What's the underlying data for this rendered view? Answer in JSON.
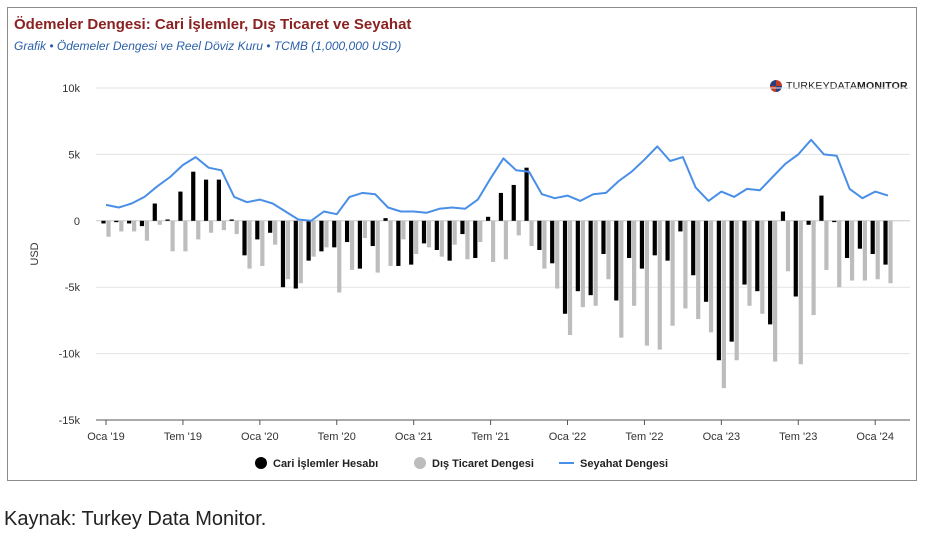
{
  "header": {
    "title": "Ödemeler Dengesi: Cari İşlemler, Dış Ticaret ve Seyahat",
    "subtitle": "Grafik • Ödemeler Dengesi ve Reel Döviz Kuru • TCMB (1,000,000 USD)"
  },
  "logo": {
    "light": "TURKEY",
    "mid": "DATA",
    "bold": "MONITOR"
  },
  "footer": {
    "source": "Kaynak: Turkey Data Monitor."
  },
  "colors": {
    "current": "#000000",
    "trade": "#bdbdbd",
    "travel": "#4a8fe7"
  },
  "chart_data": {
    "type": "bar",
    "ylabel": "USD",
    "ylim": [
      -15000,
      10000
    ],
    "yticks": [
      10000,
      5000,
      0,
      -5000,
      -10000,
      -15000
    ],
    "ytick_labels": [
      "10k",
      "5k",
      "0",
      "-5k",
      "-10k",
      "-15k"
    ],
    "xtick_labels": [
      {
        "label": "Oca '19",
        "index": 0
      },
      {
        "label": "Tem '19",
        "index": 6
      },
      {
        "label": "Oca '20",
        "index": 12
      },
      {
        "label": "Tem '20",
        "index": 18
      },
      {
        "label": "Oca '21",
        "index": 24
      },
      {
        "label": "Tem '21",
        "index": 30
      },
      {
        "label": "Oca '22",
        "index": 36
      },
      {
        "label": "Tem '22",
        "index": 42
      },
      {
        "label": "Oca '23",
        "index": 48
      },
      {
        "label": "Tem '23",
        "index": 54
      },
      {
        "label": "Oca '24",
        "index": 60
      }
    ],
    "grid": true,
    "legend_position": "bottom",
    "categories": [
      "2019-01",
      "2019-02",
      "2019-03",
      "2019-04",
      "2019-05",
      "2019-06",
      "2019-07",
      "2019-08",
      "2019-09",
      "2019-10",
      "2019-11",
      "2019-12",
      "2020-01",
      "2020-02",
      "2020-03",
      "2020-04",
      "2020-05",
      "2020-06",
      "2020-07",
      "2020-08",
      "2020-09",
      "2020-10",
      "2020-11",
      "2020-12",
      "2021-01",
      "2021-02",
      "2021-03",
      "2021-04",
      "2021-05",
      "2021-06",
      "2021-07",
      "2021-08",
      "2021-09",
      "2021-10",
      "2021-11",
      "2021-12",
      "2022-01",
      "2022-02",
      "2022-03",
      "2022-04",
      "2022-05",
      "2022-06",
      "2022-07",
      "2022-08",
      "2022-09",
      "2022-10",
      "2022-11",
      "2022-12",
      "2023-01",
      "2023-02",
      "2023-03",
      "2023-04",
      "2023-05",
      "2023-06",
      "2023-07",
      "2023-08",
      "2023-09",
      "2023-10",
      "2023-11",
      "2023-12",
      "2024-01",
      "2024-02"
    ],
    "series": [
      {
        "name": "Cari İşlemler Hesabı",
        "type": "bar",
        "color": "#000000",
        "values": [
          -200,
          -100,
          -200,
          -400,
          1300,
          100,
          2200,
          3700,
          3100,
          3100,
          100,
          -2600,
          -1400,
          -900,
          -5000,
          -5100,
          -3000,
          -2300,
          -2000,
          -1600,
          -3600,
          -1900,
          200,
          -3400,
          -3300,
          -1700,
          -2200,
          -3000,
          -1000,
          -2800,
          300,
          2100,
          2700,
          4000,
          -2200,
          -3200,
          -7000,
          -5300,
          -5600,
          -2500,
          -6000,
          -2800,
          -3600,
          -2600,
          -3000,
          -800,
          -4100,
          -6100,
          -10500,
          -9100,
          -4800,
          -5300,
          -7800,
          700,
          -5700,
          -300,
          1900,
          -100,
          -2800,
          -2100,
          -2500,
          -3300
        ]
      },
      {
        "name": "Dış Ticaret Dengesi",
        "type": "bar",
        "color": "#bdbdbd",
        "values": [
          -1200,
          -800,
          -800,
          -1500,
          -300,
          -2300,
          -2300,
          -1400,
          -900,
          -700,
          -1000,
          -3600,
          -3400,
          -1800,
          -4400,
          -4700,
          -2700,
          -2000,
          -5400,
          -3700,
          -1300,
          -3900,
          -3400,
          -1400,
          -2500,
          -2000,
          -2700,
          -1800,
          -2900,
          -1600,
          -3100,
          -2900,
          -1100,
          -1900,
          -3600,
          -5100,
          -8600,
          -6500,
          -6400,
          -4400,
          -8800,
          -6400,
          -9400,
          -9700,
          -7900,
          -6600,
          -7400,
          -8400,
          -12600,
          -10500,
          -6400,
          -7000,
          -10600,
          -3800,
          -10800,
          -7100,
          -3700,
          -5000,
          -4500,
          -4500,
          -4400,
          -4700
        ]
      },
      {
        "name": "Seyahat Dengesi",
        "type": "line",
        "color": "#4a8fe7",
        "values": [
          1200,
          1000,
          1300,
          1800,
          2600,
          3300,
          4200,
          4800,
          4000,
          3800,
          1800,
          1400,
          1600,
          1300,
          700,
          100,
          0,
          700,
          500,
          1800,
          2100,
          2000,
          1000,
          700,
          700,
          600,
          900,
          1000,
          900,
          1600,
          3200,
          4700,
          3800,
          3700,
          2000,
          1700,
          1900,
          1500,
          2000,
          2100,
          3000,
          3700,
          4600,
          5600,
          4500,
          4800,
          2500,
          1500,
          2200,
          1800,
          2400,
          2300,
          3300,
          4300,
          5000,
          6100,
          5000,
          4900,
          2400,
          1700,
          2200,
          1900
        ]
      }
    ]
  }
}
